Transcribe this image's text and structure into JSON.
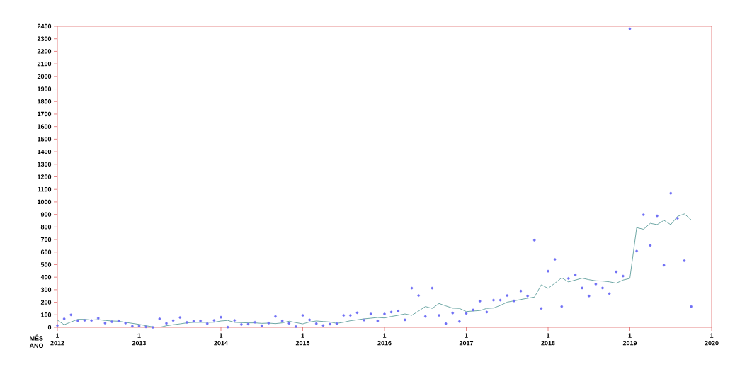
{
  "chart_data": {
    "type": "scatter",
    "xlabel": "MÊS ANO",
    "x": [
      "2012-01",
      "2012-02",
      "2012-03",
      "2012-04",
      "2012-05",
      "2012-06",
      "2012-07",
      "2012-08",
      "2012-09",
      "2012-10",
      "2012-11",
      "2012-12",
      "2013-01",
      "2013-02",
      "2013-03",
      "2013-04",
      "2013-05",
      "2013-06",
      "2013-07",
      "2013-08",
      "2013-09",
      "2013-10",
      "2013-11",
      "2013-12",
      "2014-01",
      "2014-02",
      "2014-03",
      "2014-04",
      "2014-05",
      "2014-06",
      "2014-07",
      "2014-08",
      "2014-09",
      "2014-10",
      "2014-11",
      "2014-12",
      "2015-01",
      "2015-02",
      "2015-03",
      "2015-04",
      "2015-05",
      "2015-06",
      "2015-07",
      "2015-08",
      "2015-09",
      "2015-10",
      "2015-11",
      "2015-12",
      "2016-01",
      "2016-02",
      "2016-03",
      "2016-04",
      "2016-05",
      "2016-06",
      "2016-07",
      "2016-08",
      "2016-09",
      "2016-10",
      "2016-11",
      "2016-12",
      "2017-01",
      "2017-02",
      "2017-03",
      "2017-04",
      "2017-05",
      "2017-06",
      "2017-07",
      "2017-08",
      "2017-09",
      "2017-10",
      "2017-11",
      "2017-12",
      "2018-01",
      "2018-02",
      "2018-03",
      "2018-04",
      "2018-05",
      "2018-06",
      "2018-07",
      "2018-08",
      "2018-09",
      "2018-10",
      "2018-11",
      "2018-12",
      "2019-01",
      "2019-02",
      "2019-03",
      "2019-04",
      "2019-05",
      "2019-06",
      "2019-07",
      "2019-08",
      "2019-09",
      "2019-10"
    ],
    "series": [
      {
        "marker": "circle",
        "color": "#6f6ff5",
        "values": [
          15,
          68,
          100,
          53,
          56,
          55,
          73,
          34,
          45,
          51,
          34,
          9,
          11,
          4,
          0,
          68,
          32,
          55,
          79,
          40,
          49,
          51,
          30,
          56,
          81,
          2,
          56,
          23,
          26,
          41,
          13,
          34,
          87,
          51,
          32,
          6,
          96,
          60,
          30,
          15,
          26,
          30,
          96,
          96,
          117,
          58,
          107,
          51,
          107,
          122,
          130,
          60,
          313,
          254,
          87,
          313,
          96,
          30,
          115,
          47,
          111,
          139,
          209,
          122,
          217,
          217,
          254,
          211,
          290,
          250,
          695,
          151,
          448,
          542,
          166,
          390,
          418,
          314,
          250,
          345,
          314,
          269,
          443,
          409,
          2380,
          608,
          898,
          653,
          889,
          495,
          1069,
          870,
          531,
          166
        ]
      },
      {
        "type": "line",
        "marker": "none",
        "color": "#5f9e9c",
        "values": [
          58,
          21,
          43,
          64,
          64,
          58,
          62,
          55,
          51,
          49,
          40,
          32,
          24,
          13,
          4,
          0,
          13,
          21,
          28,
          36,
          40,
          40,
          40,
          41,
          51,
          55,
          40,
          38,
          36,
          36,
          32,
          34,
          30,
          36,
          49,
          38,
          28,
          43,
          51,
          47,
          43,
          32,
          41,
          53,
          60,
          68,
          73,
          79,
          75,
          87,
          96,
          107,
          96,
          130,
          166,
          151,
          190,
          171,
          153,
          151,
          126,
          130,
          134,
          151,
          154,
          175,
          201,
          211,
          222,
          232,
          241,
          339,
          311,
          352,
          395,
          362,
          377,
          392,
          380,
          371,
          369,
          363,
          352,
          377,
          390,
          795,
          782,
          829,
          819,
          853,
          819,
          885,
          904,
          857
        ]
      }
    ],
    "xlim": [
      "2012-01",
      "2020-01"
    ],
    "xticks": [
      {
        "value": "2012-01",
        "label": "1 2012"
      },
      {
        "value": "2013-01",
        "label": "1 2013"
      },
      {
        "value": "2014-01",
        "label": "1 2014"
      },
      {
        "value": "2015-01",
        "label": "1 2015"
      },
      {
        "value": "2016-01",
        "label": "1 2016"
      },
      {
        "value": "2017-01",
        "label": "1 2017"
      },
      {
        "value": "2018-01",
        "label": "1 2018"
      },
      {
        "value": "2019-01",
        "label": "1 2019"
      },
      {
        "value": "2020-01",
        "label": "1 2020"
      }
    ],
    "ylim": [
      0,
      2400
    ],
    "yticks": [
      0,
      100,
      200,
      300,
      400,
      500,
      600,
      700,
      800,
      900,
      1000,
      1100,
      1200,
      1300,
      1400,
      1500,
      1600,
      1700,
      1800,
      1900,
      2000,
      2100,
      2200,
      2300,
      2400
    ],
    "grid": false
  }
}
